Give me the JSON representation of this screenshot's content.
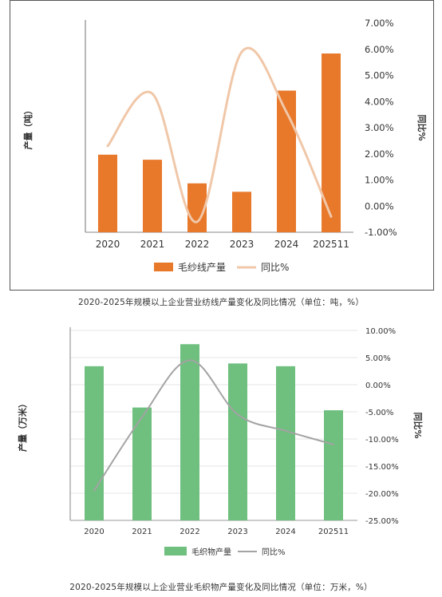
{
  "chart_data": [
    {
      "type": "bar",
      "categories": [
        "2020",
        "2021",
        "2022",
        "2023",
        "2024",
        "202511"
      ],
      "series": [
        {
          "name": "毛纱线产量",
          "type": "bar",
          "axis": "left",
          "values": [
            2.3,
            2.15,
            1.45,
            1.2,
            4.2,
            5.3
          ]
        },
        {
          "name": "同比%",
          "type": "line",
          "axis": "right",
          "values": [
            2.3,
            4.3,
            -0.6,
            5.9,
            3.6,
            -0.4
          ]
        }
      ],
      "title": "",
      "ylabel": "产量（吨）",
      "y2label": "同比%",
      "y2lim": [
        -1,
        7
      ],
      "y2ticks": [
        "7.00%",
        "6.00%",
        "5.00%",
        "4.00%",
        "3.00%",
        "2.00%",
        "1.00%",
        "0.00%",
        "-1.00%"
      ],
      "legend_position": "bottom",
      "grid": false,
      "colors": {
        "bar": "#e8782a",
        "line": "#f0c7a8"
      }
    },
    {
      "type": "bar",
      "categories": [
        "2020",
        "2021",
        "2022",
        "2023",
        "2024",
        "202511"
      ],
      "series": [
        {
          "name": "毛织物产量",
          "type": "bar",
          "axis": "left",
          "values": [
            2.8,
            2.05,
            3.2,
            2.85,
            2.8,
            2.0
          ]
        },
        {
          "name": "同比%",
          "type": "line",
          "axis": "right",
          "values": [
            -19.5,
            -6.0,
            4.5,
            -5.5,
            -8.5,
            -11.0
          ]
        }
      ],
      "title": "",
      "ylabel": "产量（万米）",
      "y2label": "同比%",
      "y2lim": [
        -25,
        10
      ],
      "y2ticks": [
        "10.00%",
        "5.00%",
        "0.00%",
        "-5.00%",
        "-10.00%",
        "-15.00%",
        "-20.00%",
        "-25.00%"
      ],
      "legend_position": "bottom",
      "grid": true,
      "colors": {
        "bar": "#6fbf7f",
        "line": "#a3a3a3"
      }
    }
  ],
  "captions": [
    "2020-2025年规模以上企业营业纺线产量变化及同比情况（单位：吨，%）",
    "2020-2025年规模以上企业营业毛织物产量变化及同比情况（单位：万米，%）"
  ]
}
